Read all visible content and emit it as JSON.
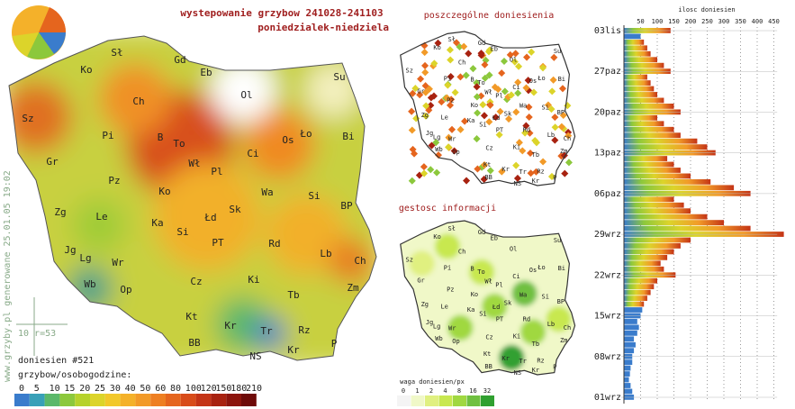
{
  "header": {
    "title": "wystepowanie grzybow 241028-241103",
    "subtitle": "poniedzialek-niedziela"
  },
  "map_main": {
    "cities": [
      "Sł",
      "Gd",
      "Eb",
      "Ko",
      "Su",
      "Ch",
      "Ol",
      "Sz",
      "Pi",
      "B",
      "To",
      "Ło",
      "Os",
      "Bi",
      "Gr",
      "Wł",
      "Pl",
      "Ci",
      "Pz",
      "Ko",
      "Wa",
      "Si",
      "Zg",
      "Le",
      "Ka",
      "Łd",
      "Sk",
      "BP",
      "Si",
      "PT",
      "Rd",
      "Lb",
      "Jg",
      "Lg",
      "Wr",
      "Ch",
      "Wb",
      "Op",
      "Cz",
      "Ki",
      "Zm",
      "Tb",
      "Kt",
      "Kr",
      "Tr",
      "Rz",
      "BB",
      "Kr",
      "NS",
      "P"
    ],
    "reports": "doniesien #521",
    "legend_title": "grzybow/osobogodzine:",
    "scale_note": "10 r=53",
    "credit": "www.grzyby.pl generowane 25.01.05 19:02",
    "legend": [
      "0",
      "5",
      "10",
      "15",
      "20",
      "25",
      "30",
      "40",
      "50",
      "60",
      "80",
      "100",
      "120",
      "150",
      "180",
      "210"
    ]
  },
  "map_reports": {
    "title": "poszczególne doniesienia",
    "cities": [
      "Sł",
      "Gd",
      "Eb",
      "Ko",
      "Su",
      "Ch",
      "Ol",
      "Sz",
      "Pi",
      "B",
      "To",
      "Ło",
      "Os",
      "Bi",
      "Gr",
      "Wł",
      "Pl",
      "Ci",
      "Pz",
      "Ko",
      "Wa",
      "Si",
      "Zg",
      "Le",
      "Ka",
      "Łd",
      "Sk",
      "BP",
      "Si",
      "PT",
      "Rd",
      "Lb",
      "Jg",
      "Lg",
      "Wr",
      "Ch",
      "Wb",
      "Op",
      "Cz",
      "Ki",
      "Zm",
      "Tb",
      "Kt",
      "Kr",
      "Tr",
      "Rz",
      "BB",
      "Kr",
      "NS",
      "P"
    ]
  },
  "map_density": {
    "title": "gestosc informacji",
    "cities": [
      "Sł",
      "Gd",
      "Eb",
      "Ko",
      "Su",
      "Ch",
      "Ol",
      "Sz",
      "Pi",
      "B",
      "To",
      "Ło",
      "Os",
      "Bi",
      "Gr",
      "Wł",
      "Pl",
      "Ci",
      "Pz",
      "Ko",
      "Wa",
      "Si",
      "Zg",
      "Le",
      "Ka",
      "Łd",
      "Sk",
      "BP",
      "Si",
      "PT",
      "Rd",
      "Lb",
      "Jg",
      "Lg",
      "Wr",
      "Ch",
      "Wb",
      "Op",
      "Cz",
      "Ki",
      "Zm",
      "Tb",
      "Kt",
      "Kr",
      "Tr",
      "Rz",
      "BB",
      "Kr",
      "NS",
      "P"
    ],
    "legend_title": "waga doniesien/px",
    "legend": [
      "0",
      "1",
      "2",
      "4",
      "8",
      "16",
      "32"
    ]
  },
  "chart_data": {
    "type": "bar",
    "title": "ilosc doniesien",
    "orientation": "horizontal",
    "date_labels": [
      {
        "value": 0,
        "label": "01wrz"
      },
      {
        "value": 7,
        "label": "08wrz"
      },
      {
        "value": 14,
        "label": "15wrz"
      },
      {
        "value": 21,
        "label": "22wrz"
      },
      {
        "value": 28,
        "label": "29wrz"
      },
      {
        "value": 35,
        "label": "06paz"
      },
      {
        "value": 42,
        "label": "13paz"
      },
      {
        "value": 49,
        "label": "20paz"
      },
      {
        "value": 56,
        "label": "27paz"
      },
      {
        "value": 63,
        "label": "03lis"
      }
    ],
    "values": [
      30,
      25,
      20,
      15,
      18,
      20,
      25,
      25,
      30,
      35,
      30,
      40,
      45,
      40,
      50,
      55,
      60,
      70,
      80,
      90,
      100,
      155,
      120,
      110,
      130,
      150,
      170,
      200,
      480,
      380,
      300,
      250,
      200,
      180,
      150,
      380,
      330,
      260,
      200,
      170,
      150,
      130,
      275,
      250,
      220,
      170,
      150,
      120,
      100,
      170,
      150,
      120,
      100,
      90,
      80,
      70,
      140,
      120,
      100,
      80,
      70,
      60,
      50,
      140
    ],
    "xlim": [
      0,
      460
    ],
    "xticks": [
      50,
      100,
      150,
      200,
      250,
      300,
      350,
      400,
      450
    ],
    "grid": true,
    "color": "#f0a020"
  }
}
